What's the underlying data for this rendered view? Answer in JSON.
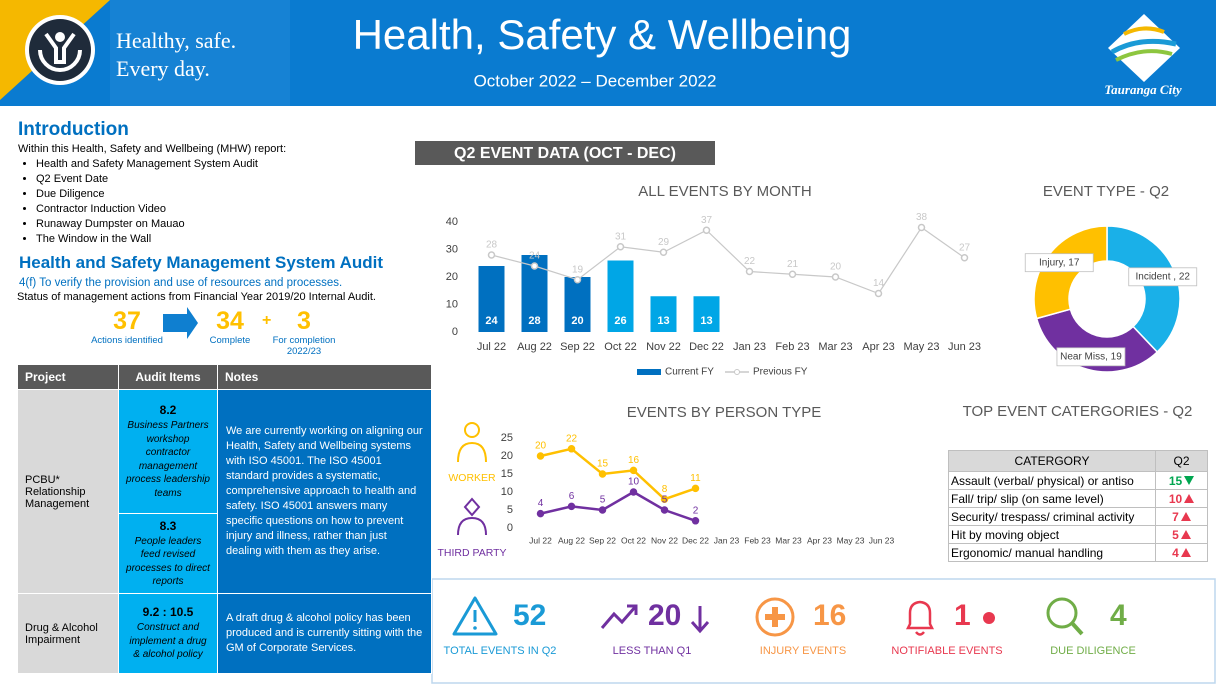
{
  "header": {
    "tagline": [
      "Healthy, safe.",
      "Every day."
    ],
    "title": "Health, Safety & Wellbeing",
    "subtitle": "October 2022 – December 2022",
    "brand": "Tauranga City"
  },
  "intro": {
    "title": "Introduction",
    "lead": "Within this Health, Safety and Wellbeing (MHW) report:",
    "items": [
      "Health and Safety Management System Audit",
      "Q2 Event Date",
      "Due Diligence",
      "Contractor Induction Video",
      "Runaway Dumpster on Mauao",
      "The Window in the Wall"
    ]
  },
  "audit": {
    "title": "Health and Safety Management System Audit",
    "clause": "4(f) To verify the provision and use of resources and processes.",
    "status": "Status of management actions from Financial Year 2019/20 Internal Audit.",
    "stats": [
      {
        "value": 37,
        "label": "Actions identified"
      },
      {
        "value": 34,
        "label": "Complete"
      },
      {
        "value": 3,
        "label": "For completion 2022/23"
      }
    ],
    "plus": "+"
  },
  "table": {
    "headers": [
      "Project",
      "Audit Items",
      "Notes"
    ],
    "rows": [
      {
        "project": "PCBU* Relationship Management",
        "items": [
          {
            "id": "8.2",
            "text": "Business Partners workshop contractor management process leadership teams"
          },
          {
            "id": "8.3",
            "text": "People leaders feed revised processes to direct reports"
          }
        ],
        "notes": "We are currently working on aligning our Health, Safety and Wellbeing systems with ISO 45001. The ISO 45001 standard provides a systematic, comprehensive approach to health and safety. ISO 45001 answers many specific questions on how to prevent injury and illness, rather than just dealing with them as they arise."
      },
      {
        "project": "Drug & Alcohol Impairment",
        "items": [
          {
            "id": "9.2 : 10.5",
            "text": "Construct and implement a drug & alcohol policy"
          }
        ],
        "notes": "A draft drug & alcohol policy has been produced and is currently sitting with the GM of Corporate Services."
      }
    ]
  },
  "section_label": "Q2 EVENT DATA (OCT - DEC)",
  "chart_data": [
    {
      "type": "bar_line",
      "title": "ALL EVENTS BY MONTH",
      "categories": [
        "Jul 22",
        "Aug 22",
        "Sep 22",
        "Oct 22",
        "Nov 22",
        "Dec 22",
        "Jan 23",
        "Feb 23",
        "Mar 23",
        "Apr 23",
        "May 23",
        "Jun 23"
      ],
      "series": [
        {
          "name": "Current FY",
          "type": "bar",
          "color": "#0070c0",
          "colors": [
            "#0070c0",
            "#0070c0",
            "#0070c0",
            "#00a6e6",
            "#00a6e6",
            "#00a6e6",
            null,
            null,
            null,
            null,
            null,
            null
          ],
          "values": [
            24,
            28,
            20,
            26,
            13,
            13,
            null,
            null,
            null,
            null,
            null,
            null
          ]
        },
        {
          "name": "Previous FY",
          "type": "line",
          "color": "#c8c8c8",
          "values": [
            28,
            24,
            19,
            31,
            29,
            37,
            22,
            21,
            20,
            14,
            38,
            27
          ]
        }
      ],
      "ylim": [
        0,
        40
      ],
      "yticks": [
        0,
        10,
        20,
        30,
        40
      ],
      "grid": false
    },
    {
      "type": "donut",
      "title": "EVENT TYPE - Q2",
      "values": [
        22,
        19,
        17
      ],
      "value_labels": [
        "Incident , 22",
        "Near Miss, 19",
        "Injury, 17"
      ],
      "colors": [
        "#1ab0e8",
        "#7030a0",
        "#ffc000"
      ]
    },
    {
      "type": "line",
      "title": "EVENTS BY PERSON TYPE",
      "categories": [
        "Jul 22",
        "Aug 22",
        "Sep 22",
        "Oct 22",
        "Nov 22",
        "Dec 22",
        "Jan 23",
        "Feb 23",
        "Mar 23",
        "Apr 23",
        "May 23",
        "Jun 23"
      ],
      "series": [
        {
          "name": "WORKER",
          "color": "#ffc000",
          "values": [
            20,
            22,
            15,
            16,
            8,
            11,
            null,
            null,
            null,
            null,
            null,
            null
          ]
        },
        {
          "name": "THIRD PARTY",
          "color": "#7030a0",
          "values": [
            4,
            6,
            5,
            10,
            5,
            2,
            null,
            null,
            null,
            null,
            null,
            null
          ]
        }
      ],
      "ylim": [
        0,
        25
      ],
      "yticks": [
        0,
        5,
        10,
        15,
        20,
        25
      ],
      "grid": false
    }
  ],
  "top_categories": {
    "title": "TOP EVENT CATERGORIES - Q2",
    "headers": [
      "CATERGORY",
      "Q2"
    ],
    "rows": [
      {
        "category": "Assault (verbal/ physical) or antiso",
        "value": 15,
        "trend": "down"
      },
      {
        "category": "Fall/ trip/ slip (on same level)",
        "value": 10,
        "trend": "up"
      },
      {
        "category": "Security/ trespass/ criminal activity",
        "value": 7,
        "trend": "up"
      },
      {
        "category": "Hit by moving object",
        "value": 5,
        "trend": "up"
      },
      {
        "category": "Ergonomic/ manual handling",
        "value": 4,
        "trend": "up"
      }
    ]
  },
  "kpis": [
    {
      "value": 52,
      "label": "TOTAL EVENTS IN Q2",
      "color": "#1a9ad6"
    },
    {
      "value": 20,
      "label": "LESS THAN Q1",
      "color": "#7030a0"
    },
    {
      "value": 16,
      "label": "INJURY EVENTS",
      "color": "#f79646"
    },
    {
      "value": 1,
      "label": "NOTIFIABLE EVENTS",
      "color": "#e8384f"
    },
    {
      "value": 4,
      "label": "DUE DILIGENCE",
      "color": "#70ad47"
    }
  ]
}
